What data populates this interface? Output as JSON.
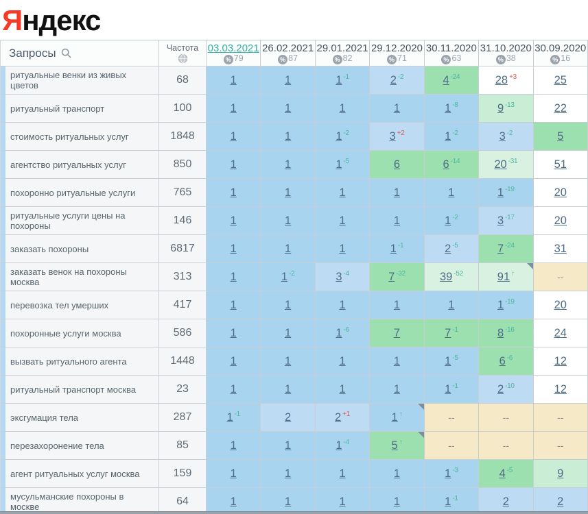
{
  "logo": {
    "ya": "Я",
    "rest": "ндекс"
  },
  "table": {
    "queries_header": "Запросы",
    "frequency_header": "Частота",
    "dates": [
      {
        "label": "03.03.2021",
        "visibility": "79",
        "selected": true
      },
      {
        "label": "26.02.2021",
        "visibility": "87",
        "selected": false
      },
      {
        "label": "29.01.2021",
        "visibility": "82",
        "selected": false
      },
      {
        "label": "29.12.2020",
        "visibility": "71",
        "selected": false
      },
      {
        "label": "30.11.2020",
        "visibility": "63",
        "selected": false
      },
      {
        "label": "31.10.2020",
        "visibility": "38",
        "selected": false
      },
      {
        "label": "30.09.2020",
        "visibility": "16",
        "selected": false
      }
    ],
    "rows": [
      {
        "query": "ритуальные венки из живых цветов",
        "frequency": "68",
        "cells": [
          {
            "v": "1",
            "bg": "blue"
          },
          {
            "v": "1",
            "bg": "blue"
          },
          {
            "v": "1",
            "sup": "-1",
            "bg": "blue"
          },
          {
            "v": "2",
            "sup": "-2",
            "bg": "blue2"
          },
          {
            "v": "4",
            "sup": "-24",
            "bg": "green"
          },
          {
            "v": "28",
            "sup": "+3",
            "red": true,
            "bg": "white"
          },
          {
            "v": "25",
            "bg": "white"
          }
        ]
      },
      {
        "query": "ритуальный транспорт",
        "frequency": "100",
        "cells": [
          {
            "v": "1",
            "bg": "blue"
          },
          {
            "v": "1",
            "bg": "blue"
          },
          {
            "v": "1",
            "bg": "blue"
          },
          {
            "v": "1",
            "bg": "blue"
          },
          {
            "v": "1",
            "sup": "-8",
            "bg": "blue"
          },
          {
            "v": "9",
            "sup": "-13",
            "bg": "lgreen"
          },
          {
            "v": "22",
            "bg": "white"
          }
        ]
      },
      {
        "query": "стоимость ритуальных услуг",
        "frequency": "1848",
        "cells": [
          {
            "v": "1",
            "bg": "blue"
          },
          {
            "v": "1",
            "bg": "blue"
          },
          {
            "v": "1",
            "sup": "-2",
            "bg": "blue"
          },
          {
            "v": "3",
            "sup": "+2",
            "red": true,
            "bg": "blue2"
          },
          {
            "v": "1",
            "sup": "-2",
            "bg": "blue"
          },
          {
            "v": "3",
            "sup": "-2",
            "bg": "blue2"
          },
          {
            "v": "5",
            "bg": "green"
          }
        ]
      },
      {
        "query": "агентство ритуальных услуг",
        "frequency": "850",
        "cells": [
          {
            "v": "1",
            "bg": "blue"
          },
          {
            "v": "1",
            "bg": "blue"
          },
          {
            "v": "1",
            "sup": "-5",
            "bg": "blue"
          },
          {
            "v": "6",
            "bg": "green"
          },
          {
            "v": "6",
            "sup": "-14",
            "bg": "green"
          },
          {
            "v": "20",
            "sup": "-31",
            "bg": "pgreen"
          },
          {
            "v": "51",
            "bg": "white"
          }
        ]
      },
      {
        "query": "похоронно ритуальные услуги",
        "frequency": "765",
        "cells": [
          {
            "v": "1",
            "bg": "blue"
          },
          {
            "v": "1",
            "bg": "blue"
          },
          {
            "v": "1",
            "bg": "blue"
          },
          {
            "v": "1",
            "bg": "blue"
          },
          {
            "v": "1",
            "bg": "blue"
          },
          {
            "v": "1",
            "sup": "-19",
            "bg": "blue"
          },
          {
            "v": "20",
            "bg": "white"
          }
        ]
      },
      {
        "query": "ритуальные услуги цены на похороны",
        "frequency": "146",
        "cells": [
          {
            "v": "1",
            "bg": "blue"
          },
          {
            "v": "1",
            "bg": "blue"
          },
          {
            "v": "1",
            "bg": "blue"
          },
          {
            "v": "1",
            "bg": "blue"
          },
          {
            "v": "1",
            "sup": "-2",
            "bg": "blue"
          },
          {
            "v": "3",
            "sup": "-17",
            "bg": "blue2"
          },
          {
            "v": "20",
            "bg": "white"
          }
        ]
      },
      {
        "query": "заказать похороны",
        "frequency": "6817",
        "cells": [
          {
            "v": "1",
            "bg": "blue"
          },
          {
            "v": "1",
            "bg": "blue"
          },
          {
            "v": "1",
            "bg": "blue"
          },
          {
            "v": "1",
            "sup": "-1",
            "bg": "blue"
          },
          {
            "v": "2",
            "sup": "-5",
            "bg": "blue2"
          },
          {
            "v": "7",
            "sup": "-24",
            "bg": "green"
          },
          {
            "v": "31",
            "bg": "white"
          }
        ]
      },
      {
        "query": "заказать венок на похороны москва",
        "frequency": "313",
        "cells": [
          {
            "v": "1",
            "bg": "blue"
          },
          {
            "v": "1",
            "sup": "-2",
            "bg": "blue"
          },
          {
            "v": "3",
            "sup": "-4",
            "bg": "blue2"
          },
          {
            "v": "7",
            "sup": "-32",
            "bg": "green"
          },
          {
            "v": "39",
            "sup": "-52",
            "bg": "pgreen"
          },
          {
            "v": "91",
            "arrow": true,
            "bg": "pgreen",
            "note": true
          },
          {
            "v": "--",
            "dash": true,
            "bg": "beige"
          }
        ]
      },
      {
        "query": "перевозка тел умерших",
        "frequency": "417",
        "cells": [
          {
            "v": "1",
            "bg": "blue"
          },
          {
            "v": "1",
            "bg": "blue"
          },
          {
            "v": "1",
            "bg": "blue"
          },
          {
            "v": "1",
            "bg": "blue"
          },
          {
            "v": "1",
            "bg": "blue"
          },
          {
            "v": "1",
            "sup": "-19",
            "bg": "blue"
          },
          {
            "v": "20",
            "bg": "white"
          }
        ]
      },
      {
        "query": "похоронные услуги москва",
        "frequency": "586",
        "cells": [
          {
            "v": "1",
            "bg": "blue"
          },
          {
            "v": "1",
            "bg": "blue"
          },
          {
            "v": "1",
            "sup": "-6",
            "bg": "blue"
          },
          {
            "v": "7",
            "bg": "green"
          },
          {
            "v": "7",
            "sup": "-1",
            "bg": "green"
          },
          {
            "v": "8",
            "sup": "-16",
            "bg": "green"
          },
          {
            "v": "24",
            "bg": "white"
          }
        ]
      },
      {
        "query": "вызвать ритуального агента",
        "frequency": "1448",
        "cells": [
          {
            "v": "1",
            "bg": "blue"
          },
          {
            "v": "1",
            "bg": "blue"
          },
          {
            "v": "1",
            "bg": "blue"
          },
          {
            "v": "1",
            "bg": "blue"
          },
          {
            "v": "1",
            "sup": "-5",
            "bg": "blue"
          },
          {
            "v": "6",
            "sup": "-6",
            "bg": "green"
          },
          {
            "v": "12",
            "bg": "white"
          }
        ]
      },
      {
        "query": "ритуальный транспорт москва",
        "frequency": "23",
        "cells": [
          {
            "v": "1",
            "bg": "blue"
          },
          {
            "v": "1",
            "bg": "blue"
          },
          {
            "v": "1",
            "bg": "blue"
          },
          {
            "v": "1",
            "bg": "blue"
          },
          {
            "v": "1",
            "sup": "-1",
            "bg": "blue"
          },
          {
            "v": "2",
            "sup": "-10",
            "bg": "blue2"
          },
          {
            "v": "12",
            "bg": "white"
          }
        ]
      },
      {
        "query": "эксгумация тела",
        "frequency": "287",
        "cells": [
          {
            "v": "1",
            "sup": "-1",
            "bg": "blue"
          },
          {
            "v": "2",
            "bg": "blue2"
          },
          {
            "v": "2",
            "sup": "+1",
            "red": true,
            "bg": "blue2"
          },
          {
            "v": "1",
            "arrow": true,
            "bg": "blue",
            "note": true
          },
          {
            "v": "--",
            "dash": true,
            "bg": "beige"
          },
          {
            "v": "--",
            "dash": true,
            "bg": "beige"
          },
          {
            "v": "--",
            "dash": true,
            "bg": "beige"
          }
        ]
      },
      {
        "query": "перезахоронение тела",
        "frequency": "85",
        "cells": [
          {
            "v": "1",
            "bg": "blue"
          },
          {
            "v": "1",
            "bg": "blue"
          },
          {
            "v": "1",
            "sup": "-4",
            "bg": "blue"
          },
          {
            "v": "5",
            "arrow": true,
            "bg": "green",
            "note": true
          },
          {
            "v": "--",
            "dash": true,
            "bg": "beige"
          },
          {
            "v": "--",
            "dash": true,
            "bg": "beige"
          },
          {
            "v": "--",
            "dash": true,
            "bg": "beige"
          }
        ]
      },
      {
        "query": "агент ритуальных услуг москва",
        "frequency": "159",
        "cells": [
          {
            "v": "1",
            "bg": "blue"
          },
          {
            "v": "1",
            "bg": "blue"
          },
          {
            "v": "1",
            "bg": "blue"
          },
          {
            "v": "1",
            "bg": "blue"
          },
          {
            "v": "1",
            "sup": "-3",
            "bg": "blue"
          },
          {
            "v": "4",
            "sup": "-5",
            "bg": "green"
          },
          {
            "v": "9",
            "bg": "lgreen"
          }
        ]
      },
      {
        "query": "мусульманские похороны в москве",
        "frequency": "64",
        "cells": [
          {
            "v": "1",
            "bg": "blue"
          },
          {
            "v": "1",
            "bg": "blue"
          },
          {
            "v": "1",
            "bg": "blue"
          },
          {
            "v": "1",
            "bg": "blue"
          },
          {
            "v": "1",
            "sup": "-1",
            "bg": "blue"
          },
          {
            "v": "2",
            "bg": "blue2"
          },
          {
            "v": "2",
            "bg": "blue2"
          }
        ]
      }
    ]
  },
  "colors": {
    "accent_teal": "#2fb3a3",
    "logo_red": "#f43b26",
    "top3_blue": "#a9d4ef",
    "top10_green": "#9de0b0",
    "light_green": "#c9edd5",
    "pale_green": "#d9f1e1",
    "no_position_beige": "#f6e9c8",
    "change_up_green": "#49b79f",
    "change_down_red": "#e2574c"
  }
}
